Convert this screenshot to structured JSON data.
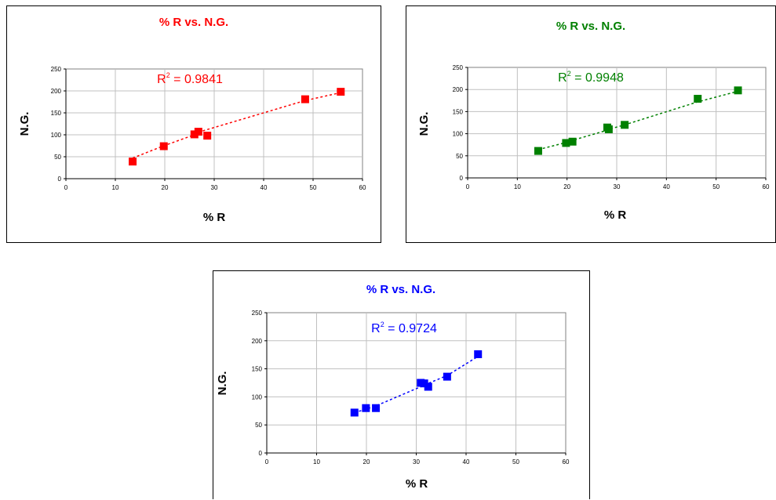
{
  "chart_data": [
    {
      "type": "scatter",
      "title": "% R vs. N.G.",
      "xlabel": "% R",
      "ylabel": "N.G.",
      "xlim": [
        0,
        60
      ],
      "ylim": [
        0,
        250
      ],
      "xticks": [
        "0",
        "10",
        "20",
        "30",
        "40",
        "50",
        "60"
      ],
      "yticks": [
        "0",
        "50",
        "100",
        "150",
        "200",
        "250"
      ],
      "grid": true,
      "color": "#ff0000",
      "trendline": "dashed",
      "annotation": {
        "text": "R",
        "sup": "2",
        "rest": " = 0.9841"
      },
      "x": [
        13.5,
        19.8,
        26.0,
        26.8,
        28.6,
        48.4,
        55.6
      ],
      "y": [
        39,
        74,
        101,
        107,
        98,
        181,
        198
      ],
      "trend_y": [
        47,
        75,
        100,
        106,
        112,
        178,
        196
      ]
    },
    {
      "type": "scatter",
      "title": "% R vs. N.G.",
      "xlabel": "% R",
      "ylabel": "N.G.",
      "xlim": [
        0,
        60
      ],
      "ylim": [
        0,
        250
      ],
      "xticks": [
        "0",
        "10",
        "20",
        "30",
        "40",
        "50",
        "60"
      ],
      "yticks": [
        "0",
        "50",
        "100",
        "150",
        "200",
        "250"
      ],
      "grid": true,
      "color": "#008000",
      "trendline": "dashed",
      "annotation": {
        "text": "R",
        "sup": "2",
        "rest": " = 0.9948"
      },
      "x": [
        14.2,
        19.8,
        21.1,
        28.1,
        28.4,
        31.6,
        46.3,
        54.4
      ],
      "y": [
        61,
        79,
        82,
        114,
        110,
        120,
        179,
        198
      ],
      "trend_y": [
        64,
        80,
        85,
        108,
        110,
        120,
        172,
        196
      ]
    },
    {
      "type": "scatter",
      "title": "% R vs. N.G.",
      "xlabel": "% R",
      "ylabel": "N.G.",
      "xlim": [
        0,
        60
      ],
      "ylim": [
        0,
        250
      ],
      "xticks": [
        "0",
        "10",
        "20",
        "30",
        "40",
        "50",
        "60"
      ],
      "yticks": [
        "0",
        "50",
        "100",
        "150",
        "200",
        "250"
      ],
      "grid": true,
      "color": "#0000ff",
      "trendline": "dashed",
      "annotation": {
        "text": "R",
        "sup": "2",
        "rest": " = 0.9724"
      },
      "x": [
        17.6,
        19.9,
        21.9,
        30.9,
        31.6,
        32.4,
        36.2,
        42.4
      ],
      "y": [
        72,
        80,
        80,
        125,
        124,
        118,
        136,
        176
      ],
      "trend_y": [
        72,
        78,
        84,
        118,
        121,
        124,
        138,
        172
      ]
    }
  ]
}
